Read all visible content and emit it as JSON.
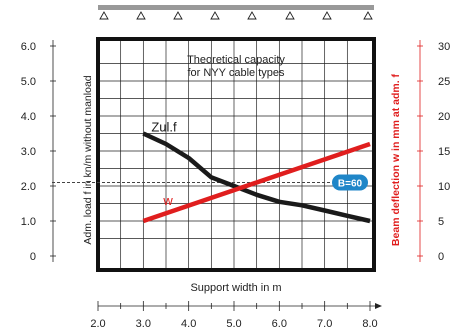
{
  "chart_data": {
    "type": "line",
    "title_lines": [
      "Theoretical capacity",
      "for NYY cable types"
    ],
    "xlabel": "Support width in m",
    "ylabel_left": "Adm. load f in kn/m without manload",
    "ylabel_right": "Beam deflection w in mm at adm. f",
    "xlim": [
      2.0,
      8.0
    ],
    "xticks": [
      "2.0",
      "3.0",
      "4.0",
      "5.0",
      "6.0",
      "7.0",
      "8.0"
    ],
    "ylim_left": [
      0,
      6.0
    ],
    "yticks_left": [
      "0",
      "1.0",
      "2.0",
      "3.0",
      "4.0",
      "5.0",
      "6.0"
    ],
    "ylim_right": [
      0,
      30
    ],
    "yticks_right": [
      "0",
      "5",
      "10",
      "15",
      "20",
      "25",
      "30"
    ],
    "series": [
      {
        "name": "Zul.f",
        "axis": "left",
        "color": "#1a1a1a",
        "x": [
          3.0,
          3.5,
          4.0,
          4.5,
          5.0,
          5.5,
          6.0,
          6.5,
          7.0,
          7.5,
          8.0
        ],
        "y": [
          3.5,
          3.2,
          2.8,
          2.25,
          2.0,
          1.75,
          1.55,
          1.45,
          1.3,
          1.15,
          1.0
        ]
      },
      {
        "name": "w",
        "axis": "right",
        "color": "#e01e1e",
        "x": [
          3.0,
          8.0
        ],
        "y": [
          5,
          16
        ]
      }
    ],
    "reference_line": {
      "axis": "right",
      "value": 10.5,
      "style": "dashed",
      "label": "B=60",
      "label_color": "#1f86c8"
    },
    "grid": true
  }
}
